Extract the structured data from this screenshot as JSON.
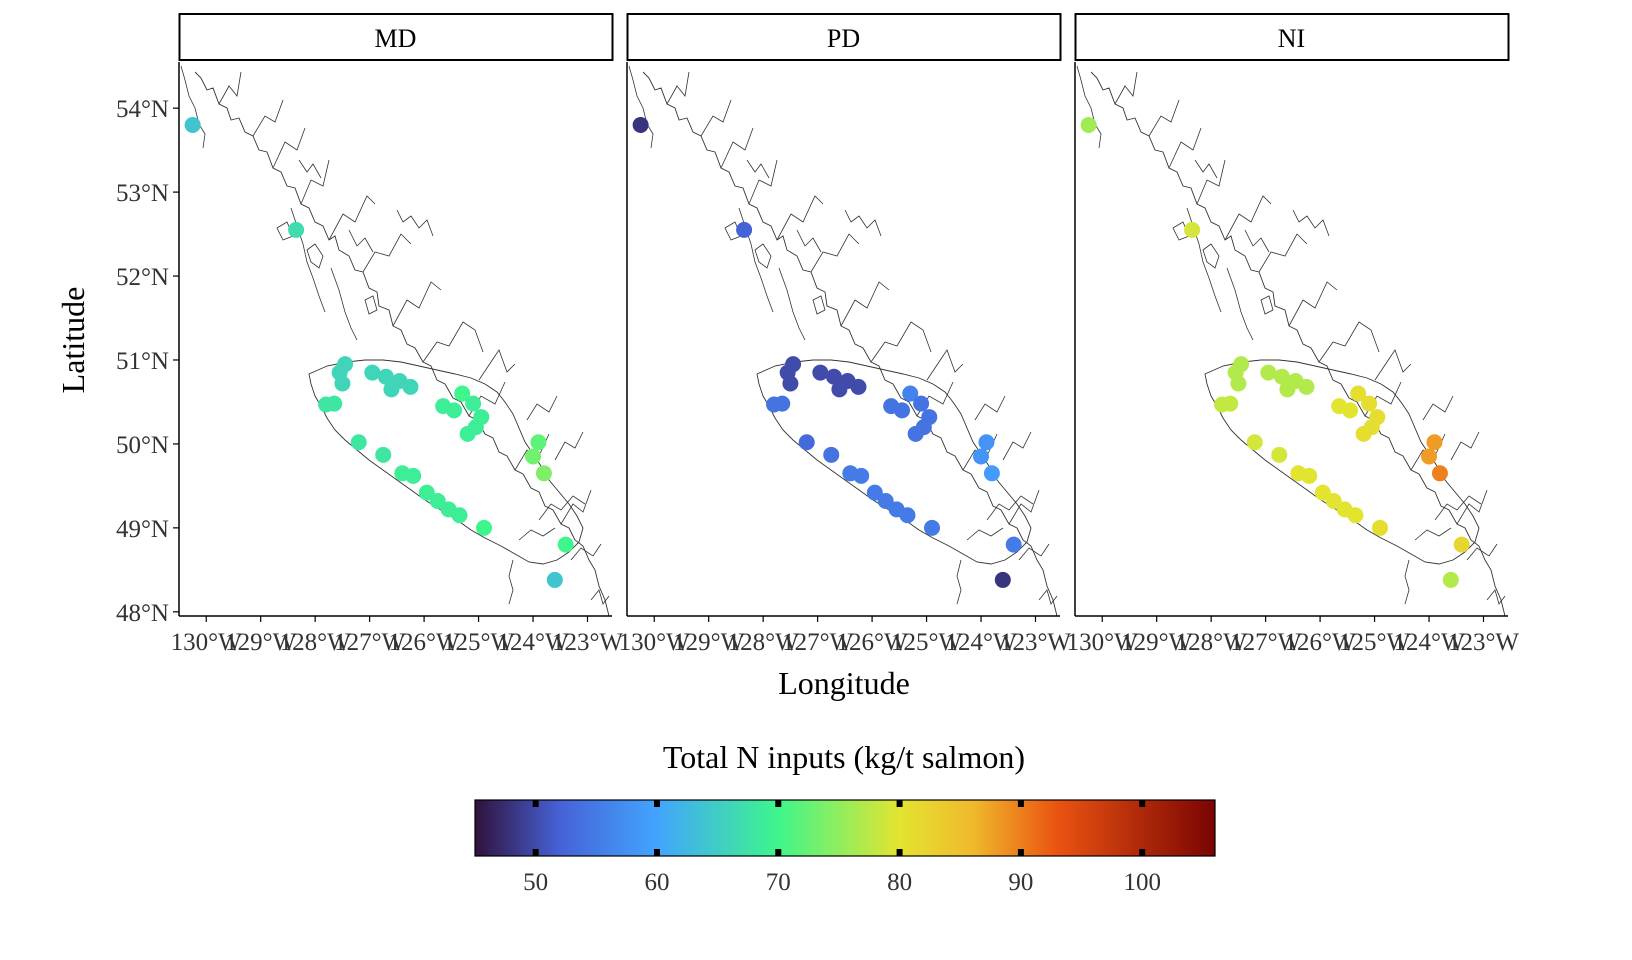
{
  "chart_data": {
    "type": "scatter",
    "subtype": "faceted map",
    "facets": [
      "MD",
      "PD",
      "NI"
    ],
    "xlabel": "Longitude",
    "ylabel": "Latitude",
    "x_ticks": [
      {
        "value": -130,
        "label": "130°W"
      },
      {
        "value": -129,
        "label": "129°W"
      },
      {
        "value": -128,
        "label": "128°W"
      },
      {
        "value": -127,
        "label": "127°W"
      },
      {
        "value": -126,
        "label": "126°W"
      },
      {
        "value": -125,
        "label": "125°W"
      },
      {
        "value": -124,
        "label": "124°W"
      },
      {
        "value": -123,
        "label": "123°W"
      }
    ],
    "y_ticks": [
      {
        "value": 48,
        "label": "48°N"
      },
      {
        "value": 49,
        "label": "49°N"
      },
      {
        "value": 50,
        "label": "50°N"
      },
      {
        "value": 51,
        "label": "51°N"
      },
      {
        "value": 52,
        "label": "52°N"
      },
      {
        "value": 53,
        "label": "53°N"
      },
      {
        "value": 54,
        "label": "54°N"
      }
    ],
    "xlim": [
      -130.5,
      -122.55
    ],
    "ylim": [
      47.95,
      54.55
    ],
    "grid": false,
    "legend": {
      "title": "Total N inputs (kg/t salmon)",
      "position": "bottom",
      "range": [
        45,
        106
      ],
      "ticks": [
        50,
        60,
        70,
        80,
        90,
        100
      ],
      "palette": [
        "#30123b",
        "#4662d7",
        "#42a4fe",
        "#3ef68b",
        "#e3e430",
        "#f0b92d",
        "#ea5311",
        "#7a0403"
      ],
      "palette_stops": [
        45,
        52,
        60,
        70,
        80,
        86,
        93,
        106
      ]
    },
    "sites": [
      {
        "lon": -130.25,
        "lat": 53.8,
        "MD": 64,
        "PD": 48,
        "NI": 76
      },
      {
        "lon": -128.35,
        "lat": 52.55,
        "MD": 67,
        "PD": 52,
        "NI": 79
      },
      {
        "lon": -127.45,
        "lat": 50.95,
        "MD": 66,
        "PD": 50,
        "NI": 77
      },
      {
        "lon": -127.55,
        "lat": 50.85,
        "MD": 66,
        "PD": 50,
        "NI": 77
      },
      {
        "lon": -127.5,
        "lat": 50.72,
        "MD": 66,
        "PD": 50,
        "NI": 77
      },
      {
        "lon": -126.95,
        "lat": 50.85,
        "MD": 66,
        "PD": 50,
        "NI": 77
      },
      {
        "lon": -126.7,
        "lat": 50.8,
        "MD": 66,
        "PD": 50,
        "NI": 77
      },
      {
        "lon": -126.45,
        "lat": 50.75,
        "MD": 66,
        "PD": 50,
        "NI": 77
      },
      {
        "lon": -126.6,
        "lat": 50.65,
        "MD": 66,
        "PD": 50,
        "NI": 77
      },
      {
        "lon": -126.25,
        "lat": 50.68,
        "MD": 66,
        "PD": 50,
        "NI": 77
      },
      {
        "lon": -127.8,
        "lat": 50.47,
        "MD": 68,
        "PD": 54,
        "NI": 78
      },
      {
        "lon": -127.65,
        "lat": 50.48,
        "MD": 68,
        "PD": 54,
        "NI": 78
      },
      {
        "lon": -125.3,
        "lat": 50.6,
        "MD": 70,
        "PD": 56,
        "NI": 81
      },
      {
        "lon": -125.65,
        "lat": 50.45,
        "MD": 69,
        "PD": 54,
        "NI": 80
      },
      {
        "lon": -125.45,
        "lat": 50.4,
        "MD": 69,
        "PD": 54,
        "NI": 80
      },
      {
        "lon": -125.1,
        "lat": 50.48,
        "MD": 69,
        "PD": 54,
        "NI": 81
      },
      {
        "lon": -124.95,
        "lat": 50.32,
        "MD": 69,
        "PD": 54,
        "NI": 81
      },
      {
        "lon": -125.05,
        "lat": 50.2,
        "MD": 69,
        "PD": 54,
        "NI": 81
      },
      {
        "lon": -125.2,
        "lat": 50.12,
        "MD": 69,
        "PD": 54,
        "NI": 81
      },
      {
        "lon": -127.2,
        "lat": 50.02,
        "MD": 68,
        "PD": 53,
        "NI": 79
      },
      {
        "lon": -126.75,
        "lat": 49.87,
        "MD": 68,
        "PD": 54,
        "NI": 79
      },
      {
        "lon": -126.4,
        "lat": 49.65,
        "MD": 69,
        "PD": 55,
        "NI": 80
      },
      {
        "lon": -126.2,
        "lat": 49.62,
        "MD": 69,
        "PD": 55,
        "NI": 80
      },
      {
        "lon": -125.95,
        "lat": 49.42,
        "MD": 69,
        "PD": 55,
        "NI": 80
      },
      {
        "lon": -125.75,
        "lat": 49.32,
        "MD": 69,
        "PD": 55,
        "NI": 80
      },
      {
        "lon": -125.55,
        "lat": 49.22,
        "MD": 69,
        "PD": 55,
        "NI": 80
      },
      {
        "lon": -125.35,
        "lat": 49.15,
        "MD": 69,
        "PD": 55,
        "NI": 80
      },
      {
        "lon": -124.9,
        "lat": 49.0,
        "MD": 70,
        "PD": 55,
        "NI": 81
      },
      {
        "lon": -123.9,
        "lat": 50.02,
        "MD": 72,
        "PD": 58,
        "NI": 88
      },
      {
        "lon": -124.0,
        "lat": 49.85,
        "MD": 73,
        "PD": 58,
        "NI": 88
      },
      {
        "lon": -123.8,
        "lat": 49.65,
        "MD": 74,
        "PD": 59,
        "NI": 90
      },
      {
        "lon": -123.4,
        "lat": 48.8,
        "MD": 70,
        "PD": 55,
        "NI": 82
      },
      {
        "lon": -123.6,
        "lat": 48.38,
        "MD": 64,
        "PD": 48,
        "NI": 77
      }
    ]
  }
}
